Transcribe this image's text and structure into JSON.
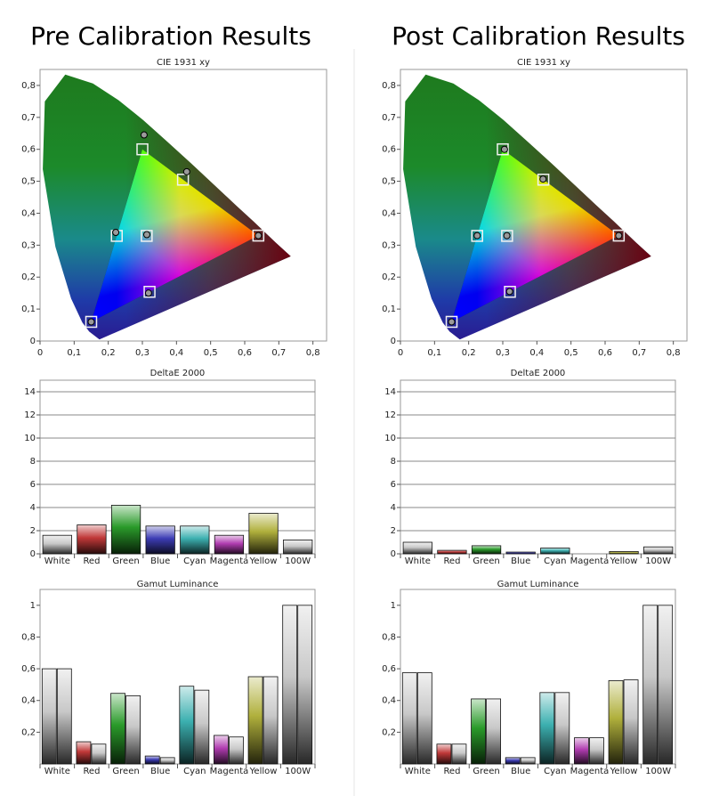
{
  "headings": [
    "Pre Calibration Results",
    "Post Calibration Results"
  ],
  "chart_data": [
    {
      "type": "scatter",
      "title": "CIE 1931 xy",
      "xlim": [
        0,
        0.84
      ],
      "ylim": [
        0,
        0.85
      ],
      "grid": false,
      "xticks": [
        0,
        {
          "value": 0.1,
          "label": "0,1"
        },
        {
          "value": 0.2,
          "label": "0,2"
        },
        {
          "value": 0.3,
          "label": "0,3"
        },
        {
          "value": 0.4,
          "label": "0,4"
        },
        {
          "value": 0.5,
          "label": "0,5"
        },
        {
          "value": 0.6,
          "label": "0,6"
        },
        {
          "value": 0.7,
          "label": "0,7"
        },
        {
          "value": 0.8,
          "label": "0,8"
        }
      ],
      "yticks": [
        0,
        {
          "value": 0.1,
          "label": "0,1"
        },
        {
          "value": 0.2,
          "label": "0,2"
        },
        {
          "value": 0.3,
          "label": "0,3"
        },
        {
          "value": 0.4,
          "label": "0,4"
        },
        {
          "value": 0.5,
          "label": "0,5"
        },
        {
          "value": 0.6,
          "label": "0,6"
        },
        {
          "value": 0.7,
          "label": "0,7"
        },
        {
          "value": 0.8,
          "label": "0,8"
        }
      ],
      "series": [
        {
          "marker": "square",
          "color": "#f2f2f2",
          "x": [
            0.64,
            0.3,
            0.15,
            0.3127,
            0.225,
            0.321,
            0.419
          ],
          "values": [
            0.33,
            0.6,
            0.06,
            0.329,
            0.329,
            0.154,
            0.505
          ]
        },
        {
          "marker": "circle",
          "color": "#9a9a9a",
          "x": [
            0.64,
            0.305,
            0.15,
            0.313,
            0.222,
            0.318,
            0.43
          ],
          "values": [
            0.33,
            0.645,
            0.06,
            0.333,
            0.34,
            0.15,
            0.53
          ]
        }
      ]
    },
    {
      "type": "bar",
      "title": "DeltaE 2000",
      "ylim": [
        0,
        15
      ],
      "yticks": [
        0,
        2,
        4,
        6,
        8,
        10,
        12,
        14
      ],
      "grid": true,
      "categories": [
        "White",
        "Red",
        "Green",
        "Blue",
        "Cyan",
        "Magenta",
        "Yellow",
        "100W"
      ],
      "series": [
        {
          "colors": [
            "#c8c8c8",
            "#c03838",
            "#2a9a2a",
            "#3c3cb4",
            "#3cb0b0",
            "#b03cb0",
            "#b0b03c",
            "#c8c8c8"
          ],
          "values": [
            1.6,
            2.5,
            4.2,
            2.4,
            2.4,
            1.6,
            3.5,
            1.2
          ]
        }
      ]
    },
    {
      "type": "bar",
      "title": "Gamut Luminance",
      "ylim": [
        0,
        1.1
      ],
      "yticks": [
        {
          "value": 0.2,
          "label": "0,2"
        },
        {
          "value": 0.4,
          "label": "0,4"
        },
        {
          "value": 0.6,
          "label": "0,6"
        },
        {
          "value": 0.8,
          "label": "0,8"
        },
        1
      ],
      "grid": false,
      "categories": [
        "White",
        "Red",
        "Green",
        "Blue",
        "Cyan",
        "Magenta",
        "Yellow",
        "100W"
      ],
      "series": [
        {
          "colors": [
            "#c8c8c8",
            "#c03838",
            "#2a9a2a",
            "#3c3cb4",
            "#3cb0b0",
            "#b03cb0",
            "#b0b03c",
            "#c8c8c8"
          ],
          "values": [
            0.6,
            0.14,
            0.445,
            0.05,
            0.49,
            0.18,
            0.55,
            1.0
          ]
        },
        {
          "color": "#c8c8c8",
          "values": [
            0.6,
            0.125,
            0.43,
            0.04,
            0.465,
            0.17,
            0.55,
            1.0
          ]
        }
      ]
    },
    {
      "type": "scatter",
      "title": "CIE 1931 xy",
      "xlim": [
        0,
        0.84
      ],
      "ylim": [
        0,
        0.85
      ],
      "grid": false,
      "xticks": [
        0,
        {
          "value": 0.1,
          "label": "0,1"
        },
        {
          "value": 0.2,
          "label": "0,2"
        },
        {
          "value": 0.3,
          "label": "0,3"
        },
        {
          "value": 0.4,
          "label": "0,4"
        },
        {
          "value": 0.5,
          "label": "0,5"
        },
        {
          "value": 0.6,
          "label": "0,6"
        },
        {
          "value": 0.7,
          "label": "0,7"
        },
        {
          "value": 0.8,
          "label": "0,8"
        }
      ],
      "yticks": [
        0,
        {
          "value": 0.1,
          "label": "0,1"
        },
        {
          "value": 0.2,
          "label": "0,2"
        },
        {
          "value": 0.3,
          "label": "0,3"
        },
        {
          "value": 0.4,
          "label": "0,4"
        },
        {
          "value": 0.5,
          "label": "0,5"
        },
        {
          "value": 0.6,
          "label": "0,6"
        },
        {
          "value": 0.7,
          "label": "0,7"
        },
        {
          "value": 0.8,
          "label": "0,8"
        }
      ],
      "series": [
        {
          "marker": "square",
          "color": "#f2f2f2",
          "x": [
            0.64,
            0.3,
            0.15,
            0.3127,
            0.225,
            0.321,
            0.419
          ],
          "values": [
            0.33,
            0.6,
            0.06,
            0.329,
            0.329,
            0.154,
            0.505
          ]
        },
        {
          "marker": "circle",
          "color": "#9a9a9a",
          "x": [
            0.64,
            0.305,
            0.15,
            0.312,
            0.225,
            0.32,
            0.418
          ],
          "values": [
            0.33,
            0.6,
            0.06,
            0.33,
            0.33,
            0.155,
            0.507
          ]
        }
      ]
    },
    {
      "type": "bar",
      "title": "DeltaE 2000",
      "ylim": [
        0,
        15
      ],
      "yticks": [
        0,
        2,
        4,
        6,
        8,
        10,
        12,
        14
      ],
      "grid": true,
      "categories": [
        "White",
        "Red",
        "Green",
        "Blue",
        "Cyan",
        "Magenta",
        "Yellow",
        "100W"
      ],
      "series": [
        {
          "colors": [
            "#c8c8c8",
            "#c03838",
            "#2a9a2a",
            "#3c3cb4",
            "#3cb0b0",
            "#b03cb0",
            "#b0b03c",
            "#c8c8c8"
          ],
          "values": [
            1.0,
            0.3,
            0.7,
            0.15,
            0.5,
            0.0,
            0.2,
            0.6
          ]
        }
      ]
    },
    {
      "type": "bar",
      "title": "Gamut Luminance",
      "ylim": [
        0,
        1.1
      ],
      "yticks": [
        {
          "value": 0.2,
          "label": "0,2"
        },
        {
          "value": 0.4,
          "label": "0,4"
        },
        {
          "value": 0.6,
          "label": "0,6"
        },
        {
          "value": 0.8,
          "label": "0,8"
        },
        1
      ],
      "grid": false,
      "categories": [
        "White",
        "Red",
        "Green",
        "Blue",
        "Cyan",
        "Magenta",
        "Yellow",
        "100W"
      ],
      "series": [
        {
          "colors": [
            "#c8c8c8",
            "#c03838",
            "#2a9a2a",
            "#3c3cb4",
            "#3cb0b0",
            "#b03cb0",
            "#b0b03c",
            "#c8c8c8"
          ],
          "values": [
            0.575,
            0.125,
            0.41,
            0.04,
            0.45,
            0.165,
            0.525,
            1.0
          ]
        },
        {
          "color": "#c8c8c8",
          "values": [
            0.575,
            0.125,
            0.41,
            0.04,
            0.45,
            0.165,
            0.53,
            1.0
          ]
        }
      ]
    }
  ]
}
